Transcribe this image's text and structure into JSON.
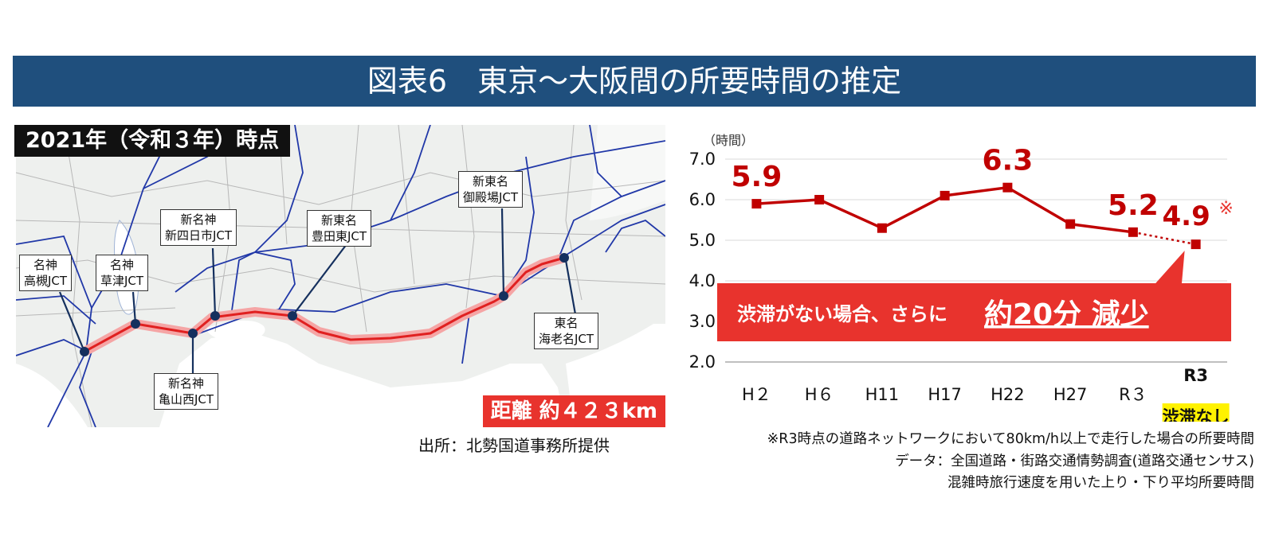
{
  "title": "図表6　東京～大阪間の所要時間の推定",
  "map": {
    "caption": "2021年（令和３年）時点",
    "distance": "距離 約４２３km",
    "source": "出所：北勢国道事務所提供",
    "junctions": [
      {
        "line1": "名神",
        "line2": "高槻JCT"
      },
      {
        "line1": "名神",
        "line2": "草津JCT"
      },
      {
        "line1": "新名神",
        "line2": "新四日市JCT"
      },
      {
        "line1": "新名神",
        "line2": "亀山西JCT"
      },
      {
        "line1": "新東名",
        "line2": "豊田東JCT"
      },
      {
        "line1": "新東名",
        "line2": "御殿場JCT"
      },
      {
        "line1": "東名",
        "line2": "海老名JCT"
      }
    ]
  },
  "chart_data": {
    "type": "line",
    "ylabel": "（時間）",
    "ylim": [
      2.0,
      7.0
    ],
    "yticks": [
      "7.0",
      "6.0",
      "5.0",
      "4.0",
      "3.0",
      "2.0"
    ],
    "categories": [
      "H２",
      "H６",
      "H11",
      "H17",
      "H22",
      "H27",
      "R３"
    ],
    "values": [
      5.9,
      6.0,
      5.3,
      6.1,
      6.3,
      5.4,
      5.2
    ],
    "projection": {
      "label_line1": "R3",
      "label_line2": "渋滞なし",
      "value": 4.9
    },
    "data_labels": [
      {
        "index": 0,
        "text": "5.9"
      },
      {
        "index": 4,
        "text": "6.3"
      },
      {
        "index": 6,
        "text": "5.2"
      }
    ],
    "projection_label": "4.9",
    "projection_mark": "※",
    "callout": {
      "prefix": "渋滞がない場合、さらに",
      "highlight": "約20分 減少"
    },
    "colors": {
      "line": "#c00000",
      "callout": "#e8332d",
      "highlight_label": "#fff200",
      "axis": "#7f7f7f"
    }
  },
  "notes": [
    "※R3時点の道路ネットワークにおいて80km/h以上で走行した場合の所要時間",
    "データ：全国道路・街路交通情勢調査(道路交通センサス)",
    "混雑時旅行速度を用いた上り・下り平均所要時間"
  ]
}
